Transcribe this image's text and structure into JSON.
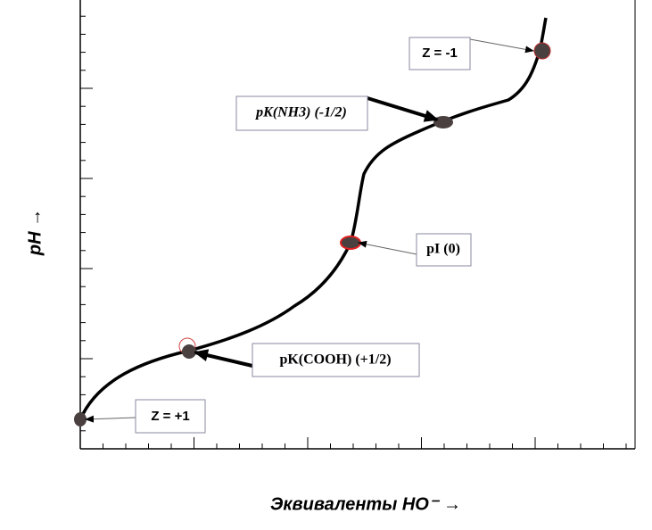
{
  "axes": {
    "y_label": "pH →",
    "x_label": "Эквиваленты HO⁻ →"
  },
  "annotations": [
    {
      "label": "Z = -1"
    },
    {
      "label": "pK(NH3)  (-1/2)"
    },
    {
      "label": "pI (0)"
    },
    {
      "label": "pK(COOH) (+1/2)"
    },
    {
      "label": "Z = +1"
    }
  ]
}
